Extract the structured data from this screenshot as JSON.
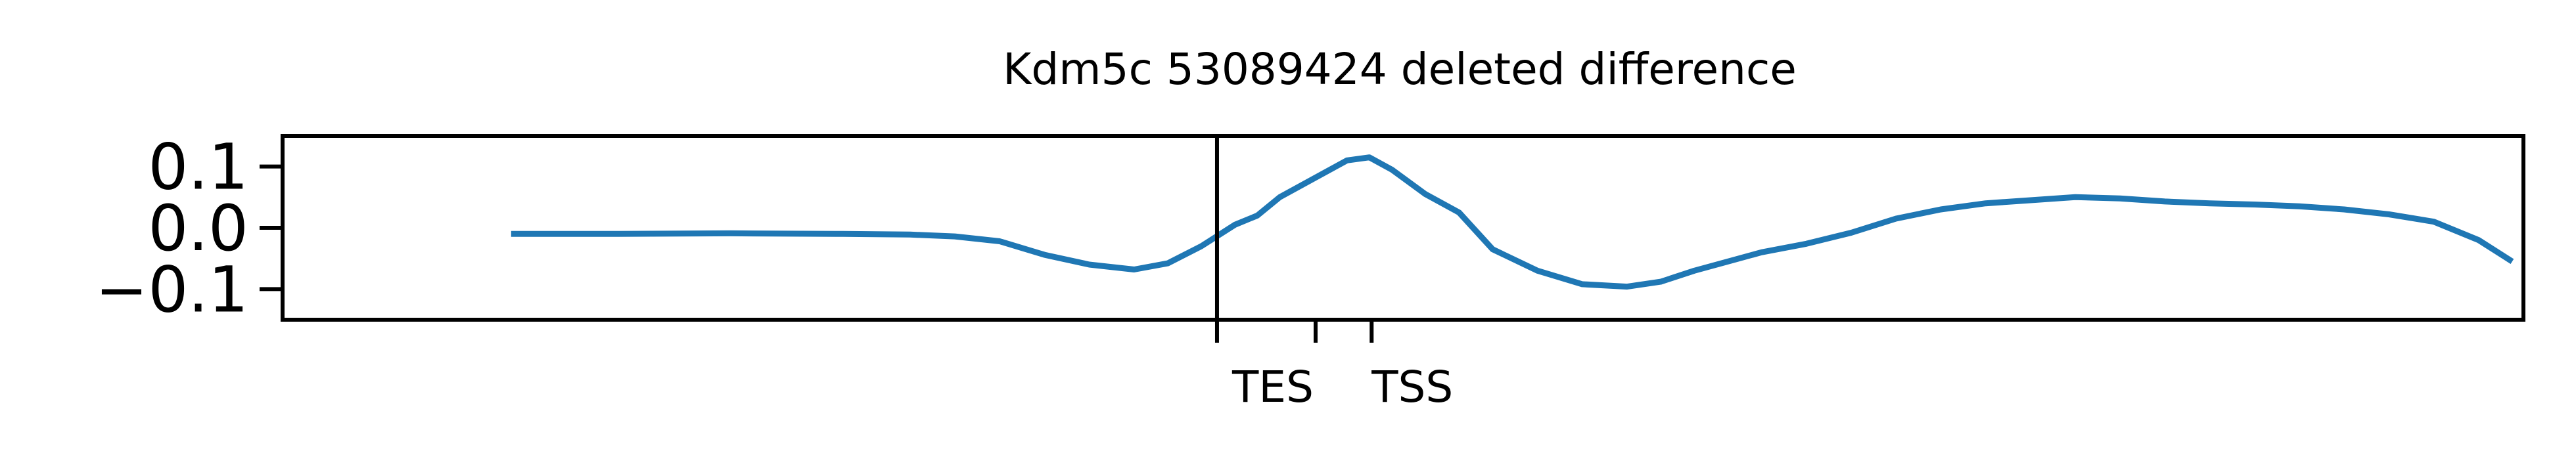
{
  "chart_data": {
    "type": "line",
    "title": "Kdm5c 53089424 deleted difference",
    "xlabel": "",
    "ylabel": "",
    "xlim": [
      0,
      100
    ],
    "ylim": [
      -0.15,
      0.15
    ],
    "grid": false,
    "legend": "none",
    "yticks": [
      {
        "value": 0.1,
        "label": "0.1"
      },
      {
        "value": 0.0,
        "label": "0.0"
      },
      {
        "value": -0.1,
        "label": "−0.1"
      }
    ],
    "xticks": [
      {
        "value": 41.7,
        "label": ""
      },
      {
        "value": 46.1,
        "label": "TES"
      },
      {
        "value": 48.6,
        "label": "TSS"
      }
    ],
    "vline": {
      "value": 41.7,
      "color": "#000000"
    },
    "series": [
      {
        "color": "#1f77b4",
        "x": [
          10.2,
          15,
          20,
          25,
          28,
          30,
          32,
          34,
          36,
          38,
          39.5,
          41,
          42.5,
          43.5,
          44.5,
          46,
          47.5,
          48.5,
          49.5,
          51,
          52.5,
          54,
          56,
          58,
          60,
          61.5,
          63,
          64.5,
          66,
          68,
          70,
          72,
          74,
          76,
          78,
          80,
          82,
          84,
          86,
          88,
          90,
          92,
          94,
          96,
          98,
          99.5
        ],
        "values": [
          -0.01,
          -0.01,
          -0.009,
          -0.01,
          -0.011,
          -0.014,
          -0.022,
          -0.044,
          -0.06,
          -0.068,
          -0.058,
          -0.03,
          0.005,
          0.02,
          0.05,
          0.08,
          0.11,
          0.115,
          0.095,
          0.055,
          0.025,
          -0.035,
          -0.07,
          -0.092,
          -0.096,
          -0.088,
          -0.07,
          -0.055,
          -0.04,
          -0.026,
          -0.008,
          0.015,
          0.03,
          0.04,
          0.045,
          0.05,
          0.048,
          0.043,
          0.04,
          0.038,
          0.035,
          0.03,
          0.022,
          0.01,
          -0.02,
          -0.055
        ]
      }
    ]
  }
}
